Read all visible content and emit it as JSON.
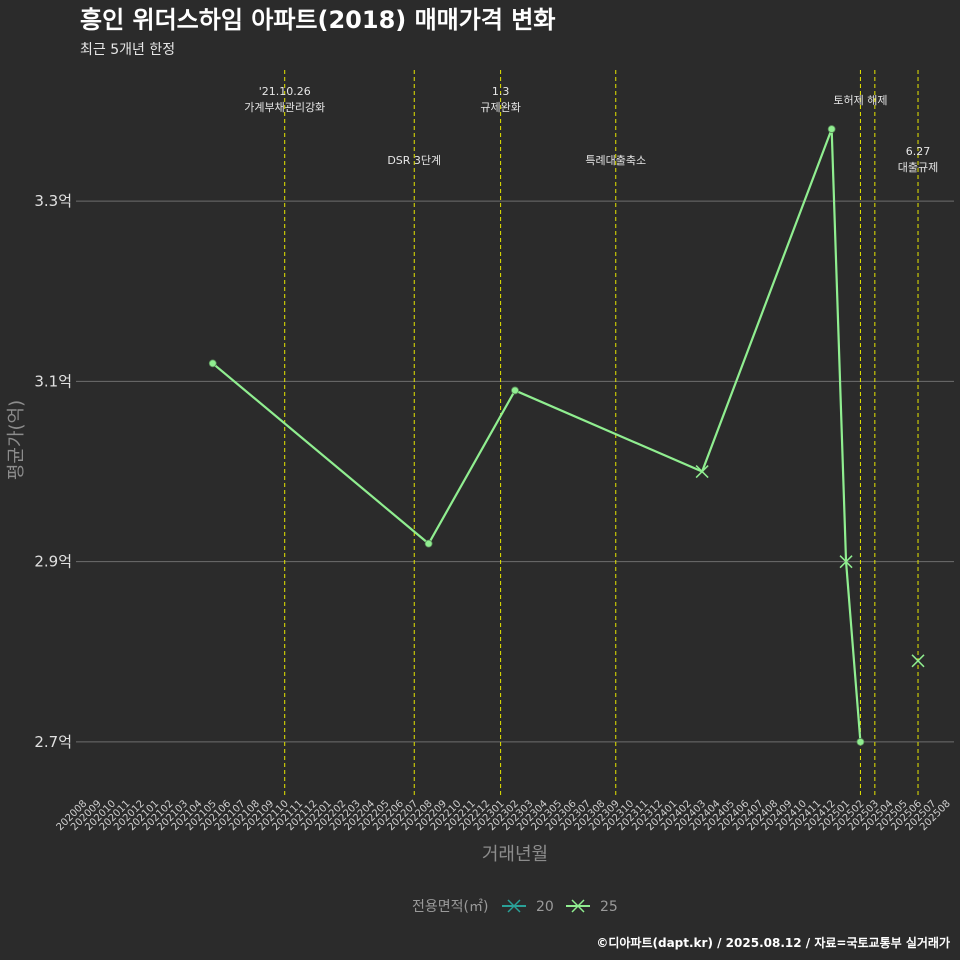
{
  "chart_data": {
    "type": "line",
    "title": "흥인 위더스하임 아파트(2018) 매매가격 변화",
    "subtitle": "최근 5개년 한정",
    "xlabel": "거래년월",
    "ylabel": "평균가(억)",
    "ylim": [
      2.64,
      3.45
    ],
    "yticks": [
      2.7,
      2.9,
      3.1,
      3.3
    ],
    "ytick_labels": [
      "2.7억",
      "2.9억",
      "3.1억",
      "3.3억"
    ],
    "x_categories": [
      "202008",
      "202009",
      "202010",
      "202011",
      "202012",
      "202101",
      "202102",
      "202103",
      "202104",
      "202105",
      "202106",
      "202107",
      "202108",
      "202109",
      "202110",
      "202111",
      "202112",
      "202201",
      "202202",
      "202203",
      "202204",
      "202205",
      "202206",
      "202207",
      "202208",
      "202209",
      "202210",
      "202211",
      "202212",
      "202301",
      "202302",
      "202303",
      "202304",
      "202305",
      "202306",
      "202307",
      "202308",
      "202309",
      "202310",
      "202311",
      "202312",
      "202401",
      "202402",
      "202403",
      "202404",
      "202405",
      "202406",
      "202407",
      "202408",
      "202409",
      "202410",
      "202411",
      "202412",
      "202501",
      "202502",
      "202503",
      "202504",
      "202505",
      "202506",
      "202507",
      "202508"
    ],
    "grid": true,
    "legend_placement": "bottom",
    "legend_title": "전용면적(㎡)",
    "series": [
      {
        "name": "20",
        "color": "#2aa198",
        "points": []
      },
      {
        "name": "25",
        "color": "#90ee90",
        "points": [
          {
            "x": "202105",
            "y": 3.12,
            "marker": "dot"
          },
          {
            "x": "202208",
            "y": 2.92,
            "marker": "dot"
          },
          {
            "x": "202302",
            "y": 3.09,
            "marker": "dot"
          },
          {
            "x": "202403",
            "y": 3.0,
            "marker": "x"
          },
          {
            "x": "202412",
            "y": 3.38,
            "marker": "dot"
          },
          {
            "x": "202501",
            "y": 2.9,
            "marker": "x"
          },
          {
            "x": "202502",
            "y": 2.7,
            "marker": "dot"
          }
        ],
        "isolated": [
          {
            "x": "202506",
            "y": 2.79,
            "marker": "x"
          }
        ]
      }
    ],
    "events": [
      {
        "x": "202110",
        "label_lines": [
          "'21.10.26",
          "가계부채관리강화"
        ],
        "row": 0
      },
      {
        "x": "202207",
        "label_lines": [
          "DSR 3단계"
        ],
        "row": 1
      },
      {
        "x": "202301",
        "label_lines": [
          "1.3",
          "규제완화"
        ],
        "row": 0
      },
      {
        "x": "202309",
        "label_lines": [
          "특례대출축소"
        ],
        "row": 1
      },
      {
        "x": "202502",
        "label_lines": [
          "토허제 해제"
        ],
        "row": 0
      },
      {
        "x": "202503",
        "label_lines": [],
        "row": 0
      },
      {
        "x": "202506",
        "label_lines": [
          "6.27",
          "대출규제"
        ],
        "row": 1
      }
    ],
    "event_color": "#e6e600",
    "caption": "©디아파트(dapt.kr) / 2025.08.12 / 자료=국토교통부 실거래가"
  }
}
